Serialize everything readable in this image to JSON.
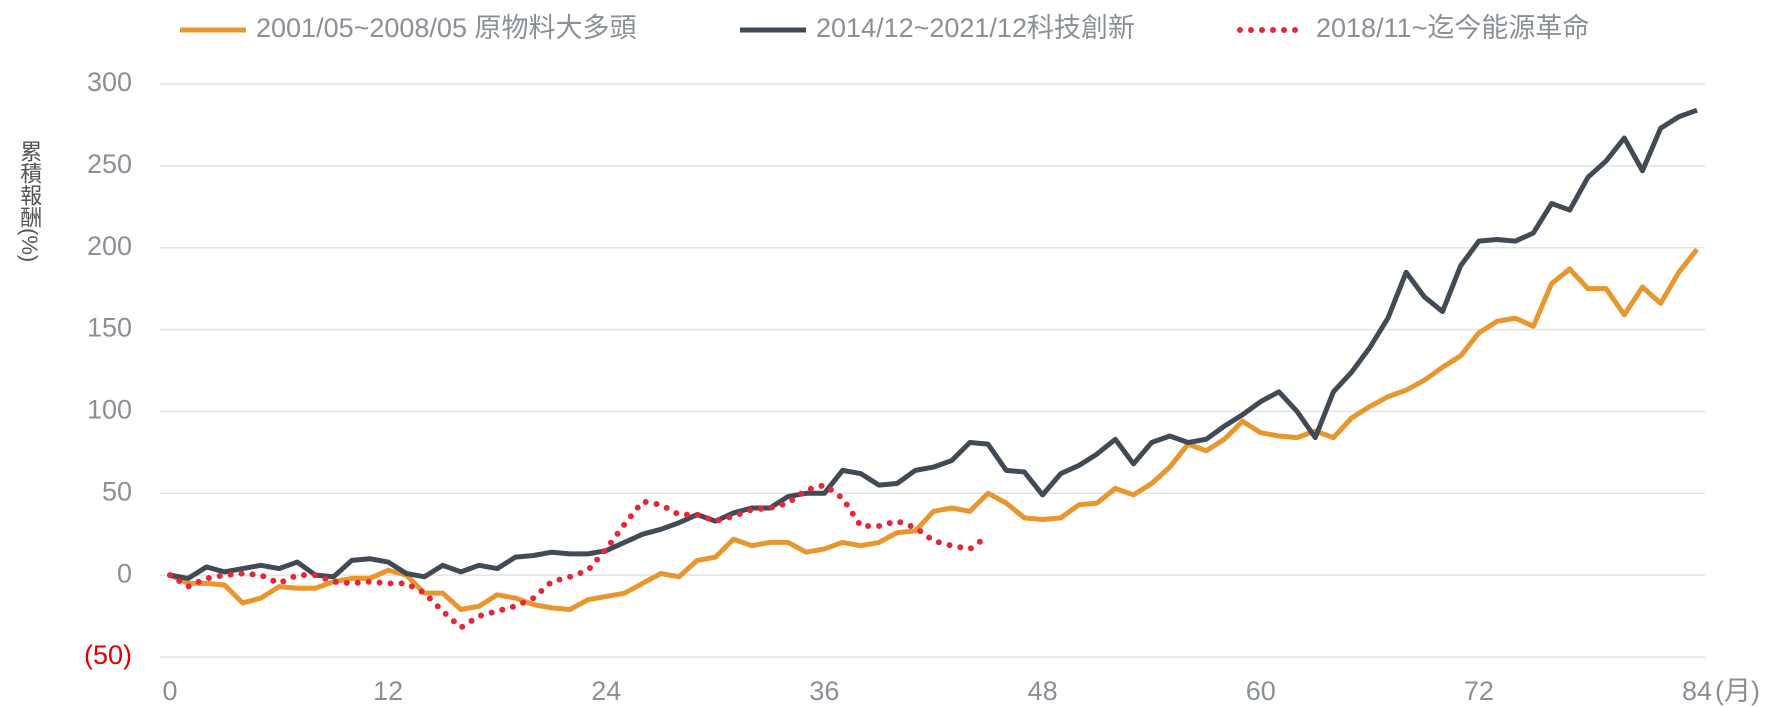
{
  "chart_data": {
    "type": "line",
    "x_label": "(月)",
    "y_label": "累積報酬(%)",
    "x": [
      0,
      1,
      2,
      3,
      4,
      5,
      6,
      7,
      8,
      9,
      10,
      11,
      12,
      13,
      14,
      15,
      16,
      17,
      18,
      19,
      20,
      21,
      22,
      23,
      24,
      25,
      26,
      27,
      28,
      29,
      30,
      31,
      32,
      33,
      34,
      35,
      36,
      37,
      38,
      39,
      40,
      41,
      42,
      43,
      44,
      45,
      46,
      47,
      48,
      49,
      50,
      51,
      52,
      53,
      54,
      55,
      56,
      57,
      58,
      59,
      60,
      61,
      62,
      63,
      64,
      65,
      66,
      67,
      68,
      69,
      70,
      71,
      72,
      73,
      74,
      75,
      76,
      77,
      78,
      79,
      80,
      81,
      82,
      83,
      84
    ],
    "xlim": [
      0,
      84
    ],
    "xticks": [
      0,
      12,
      24,
      36,
      48,
      60,
      72,
      84
    ],
    "ylim": [
      -50,
      300
    ],
    "yticks": [
      {
        "value": -50,
        "label": "(50)"
      },
      0,
      50,
      100,
      150,
      200,
      250,
      300
    ],
    "negative_tick_color": "#e00000",
    "grid": true,
    "legend": "top",
    "series": [
      {
        "name": "2001/05~2008/05 原物料大多頭",
        "color": "#e8962e",
        "style": "solid",
        "values": [
          0,
          -5,
          -5,
          -6,
          -17,
          -14,
          -7,
          -8,
          -8,
          -4,
          -2,
          -2,
          3,
          0,
          -11,
          -11,
          -21,
          -19,
          -12,
          -14,
          -18,
          -20,
          -21,
          -15,
          -13,
          -11,
          -5,
          1,
          -1,
          9,
          11,
          22,
          18,
          20,
          20,
          14,
          16,
          20,
          18,
          20,
          26,
          27,
          39,
          41,
          39,
          50,
          44,
          35,
          34,
          35,
          43,
          44,
          53,
          49,
          56,
          66,
          80,
          76,
          83,
          94,
          87,
          85,
          84,
          88,
          84,
          96,
          103,
          109,
          113,
          119,
          127,
          134,
          148,
          155,
          157,
          152,
          178,
          187,
          175,
          175,
          159,
          176,
          166,
          185,
          199
        ]
      },
      {
        "name": "2014/12~2021/12科技創新",
        "color": "#414b55",
        "style": "solid",
        "values": [
          0,
          -2,
          5,
          2,
          4,
          6,
          4,
          8,
          0,
          -1,
          9,
          10,
          8,
          1,
          -1,
          6,
          2,
          6,
          4,
          11,
          12,
          14,
          13,
          13,
          15,
          20,
          25,
          28,
          32,
          37,
          33,
          38,
          41,
          41,
          48,
          50,
          50,
          64,
          62,
          55,
          56,
          64,
          66,
          70,
          81,
          80,
          64,
          63,
          49,
          62,
          67,
          74,
          83,
          68,
          81,
          85,
          81,
          83,
          91,
          98,
          106,
          112,
          100,
          84,
          112,
          124,
          139,
          157,
          185,
          170,
          161,
          189,
          204,
          205,
          204,
          209,
          227,
          223,
          243,
          253,
          267,
          247,
          273,
          280,
          284
        ]
      },
      {
        "name": "2018/11~迄今能源革命",
        "color": "#e8263a",
        "style": "dotted",
        "values": [
          0,
          -7,
          -2,
          0,
          1,
          0,
          -5,
          0,
          0,
          -4,
          -5,
          -4,
          -5,
          -5,
          -11,
          -22,
          -32,
          -25,
          -22,
          -19,
          -14,
          -4,
          -1,
          3,
          16,
          31,
          45,
          43,
          37,
          37,
          33,
          36,
          40,
          41,
          44,
          52,
          55,
          47,
          30,
          30,
          33,
          29,
          21,
          18,
          16,
          24,
          null,
          null,
          null,
          null,
          null,
          null,
          null,
          null,
          null,
          null,
          null,
          null,
          null,
          null,
          null,
          null,
          null,
          null,
          null,
          null,
          null,
          null,
          null,
          null,
          null,
          null,
          null,
          null,
          null,
          null,
          null,
          null,
          null,
          null,
          null,
          null,
          null,
          null,
          null
        ]
      }
    ]
  }
}
